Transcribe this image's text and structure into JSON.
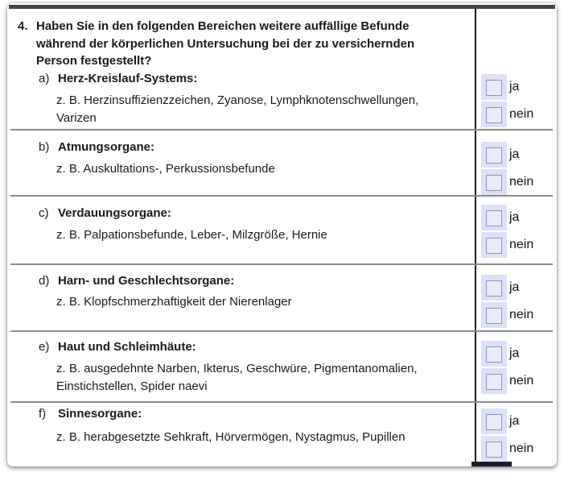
{
  "question": {
    "number": "4.",
    "lines": [
      "Haben Sie in den folgenden Bereichen weitere auffällige Befunde",
      "während der körperlichen Untersuchung bei der zu versichernden",
      "Person festgestellt?"
    ]
  },
  "options": {
    "yes": "ja",
    "no": "nein"
  },
  "items": [
    {
      "letter": "a)",
      "title": "Herz-Kreislauf-Systems:",
      "example_lines": [
        "z. B. Herzinsuffizienzzeichen, Zyanose, Lymphknotenschwellungen,",
        "Varizen"
      ]
    },
    {
      "letter": "b)",
      "title": "Atmungsorgane:",
      "example_lines": [
        "z. B. Auskultations-, Perkussionsbefunde"
      ]
    },
    {
      "letter": "c)",
      "title": "Verdauungsorgane:",
      "example_lines": [
        "z. B. Palpationsbefunde, Leber-, Milzgröße, Hernie"
      ]
    },
    {
      "letter": "d)",
      "title": "Harn- und Geschlechtsorgane:",
      "example_lines": [
        "z. B. Klopfschmerzhaftigkeit der Nierenlager"
      ]
    },
    {
      "letter": "e)",
      "title": "Haut und Schleimhäute:",
      "example_lines": [
        "z. B. ausgedehnte Narben, Ikterus, Geschwüre, Pigmentanomalien,",
        "Einstichstellen, Spider naevi"
      ]
    },
    {
      "letter": "f)",
      "title": "Sinnesorgane:",
      "example_lines": [
        "z. B. herabgesetzte Sehkraft, Hörvermögen, Nystagmus, Pupillen"
      ]
    }
  ],
  "colors": {
    "field_highlight": "#dde1f5",
    "field_border": "#8a92c2",
    "divider": "#1a1a1a",
    "row_separator": "#8b8b8b",
    "top_border": "#454545",
    "text": "#1a1a1a"
  }
}
